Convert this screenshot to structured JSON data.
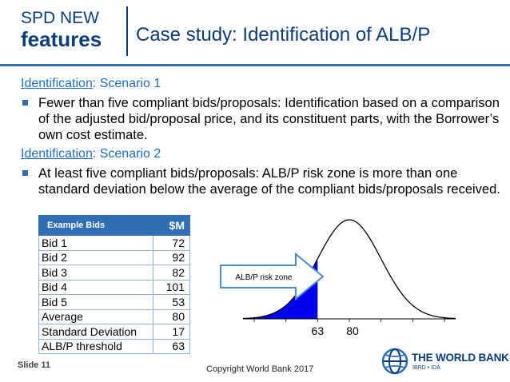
{
  "header": {
    "badge_line1": "SPD NEW",
    "badge_line2": "features",
    "title": "Case study: Identification of ALB/P"
  },
  "scenario1": {
    "link": "Identification",
    "rest": ": Scenario 1",
    "bullet": "Fewer than five compliant bids/proposals: Identification based on a comparison of the adjusted bid/proposal price, and its constituent parts, with the Borrower’s own cost estimate."
  },
  "scenario2": {
    "link": "Identification",
    "rest": ": Scenario 2",
    "bullet": "At least five compliant bids/proposals: ALB/P risk zone is more than one standard deviation below the average of the compliant bids/proposals received."
  },
  "table": {
    "headers": [
      "Example Bids",
      "$M"
    ],
    "rows": [
      [
        "Bid 1",
        "72"
      ],
      [
        "Bid 2",
        "92"
      ],
      [
        "Bid 3",
        "82"
      ],
      [
        "Bid 4",
        "101"
      ],
      [
        "Bid 5",
        "53"
      ],
      [
        "Average",
        "80"
      ],
      [
        "Standard Deviation",
        "17"
      ],
      [
        "ALB/P threshold",
        "63"
      ]
    ]
  },
  "chart_data": {
    "type": "area",
    "mean": 80,
    "std_dev": 17,
    "threshold": 63,
    "xlim": [
      23,
      137
    ],
    "x_labels": [
      "63",
      "80"
    ],
    "annotation": "ALB/P risk zone",
    "shaded_region": "below threshold",
    "shade_color": "#0000ee"
  },
  "colors": {
    "brand_blue": "#0a3d7a",
    "accent_blue": "#2f6db5",
    "link_blue": "#1f6dbf"
  },
  "footer": {
    "slide_number": "Slide 11",
    "copyright": "Copyright World Bank 2017",
    "logo_name": "THE WORLD BANK",
    "logo_sub": "IBRD • IDA",
    "logo_icon": "globe-icon"
  }
}
